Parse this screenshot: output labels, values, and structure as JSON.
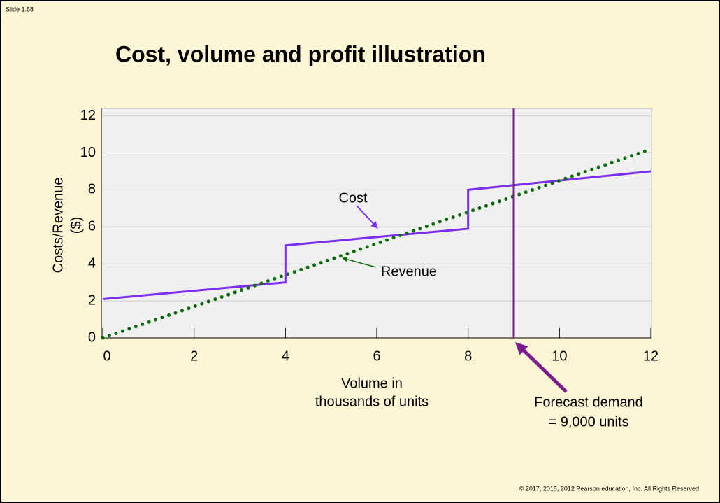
{
  "slide_number": "Slide 1.58",
  "copyright": "© 2017, 2015, 2012 Pearson education, Inc. All Rights Reserved",
  "chart_data": {
    "type": "line",
    "title": "Cost, volume and profit illustration",
    "ylabel": [
      "Costs/Revenue",
      "($)"
    ],
    "xlabel": [
      "Volume in",
      "thousands of units"
    ],
    "xlim": [
      0,
      12
    ],
    "xticks": [
      0,
      2,
      4,
      6,
      8,
      10,
      12
    ],
    "ylim": [
      0,
      12.4
    ],
    "yticks": [
      0,
      2,
      4,
      6,
      8,
      10,
      12
    ],
    "grid": true,
    "series": [
      {
        "name": "Cost",
        "color": "#7b2ff2",
        "x": [
          0,
          4,
          4,
          8,
          8,
          12
        ],
        "values": [
          2.1,
          3,
          5,
          5.9,
          8,
          9
        ]
      },
      {
        "name": "Revenue",
        "color": "#0a6a0a",
        "x": [
          0,
          12
        ],
        "values": [
          0,
          10.2
        ]
      }
    ],
    "forecast_x": 9,
    "forecast_color": "#7a1a8c",
    "forecast_label": [
      "Forecast demand",
      "= 9,000 units"
    ]
  }
}
